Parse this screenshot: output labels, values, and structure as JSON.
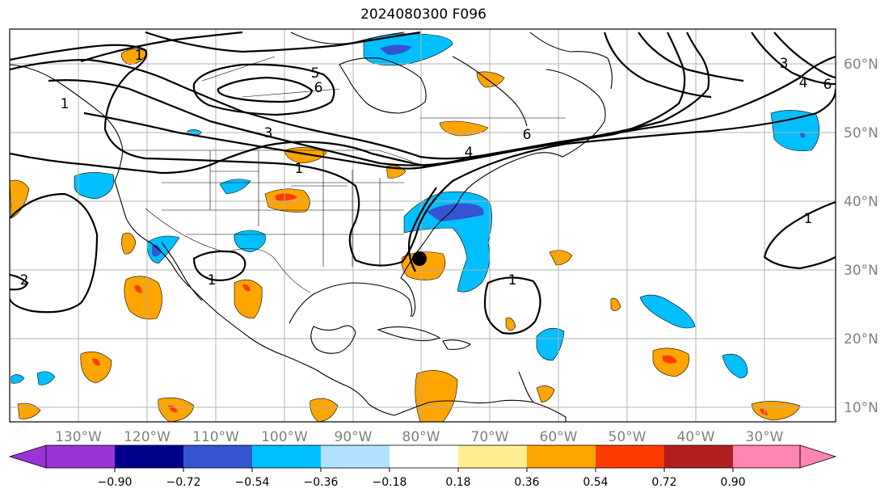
{
  "title": "2024080300 F096",
  "lon_labels": [
    "130°W",
    "120°W",
    "110°W",
    "100°W",
    "90°W",
    "80°W",
    "70°W",
    "60°W",
    "50°W",
    "40°W",
    "30°W"
  ],
  "lat_labels": [
    "60°N",
    "50°N",
    "40°N",
    "30°N",
    "20°N",
    "10°N"
  ],
  "colorbar": {
    "tick_labels": [
      "−0.90",
      "−0.72",
      "−0.54",
      "−0.36",
      "−0.18",
      "0.18",
      "0.36",
      "0.54",
      "0.72",
      "0.90"
    ],
    "colors": [
      "#9a34d6",
      "#00008b",
      "#3454d1",
      "#00bfff",
      "#b0e2ff",
      "#ffffff",
      "#ffee90",
      "#ffa500",
      "#ff3c00",
      "#b01e1e",
      "#ff85b3"
    ]
  },
  "contour_labels": [
    "1",
    "1",
    "1",
    "1",
    "1",
    "1",
    "2",
    "3",
    "3",
    "4",
    "4",
    "5",
    "6",
    "6",
    "6"
  ],
  "colors": {
    "grid": "#b0b0b0",
    "contour": "#000000",
    "axis_label": "#808080"
  },
  "marker": "storm-position-dot"
}
